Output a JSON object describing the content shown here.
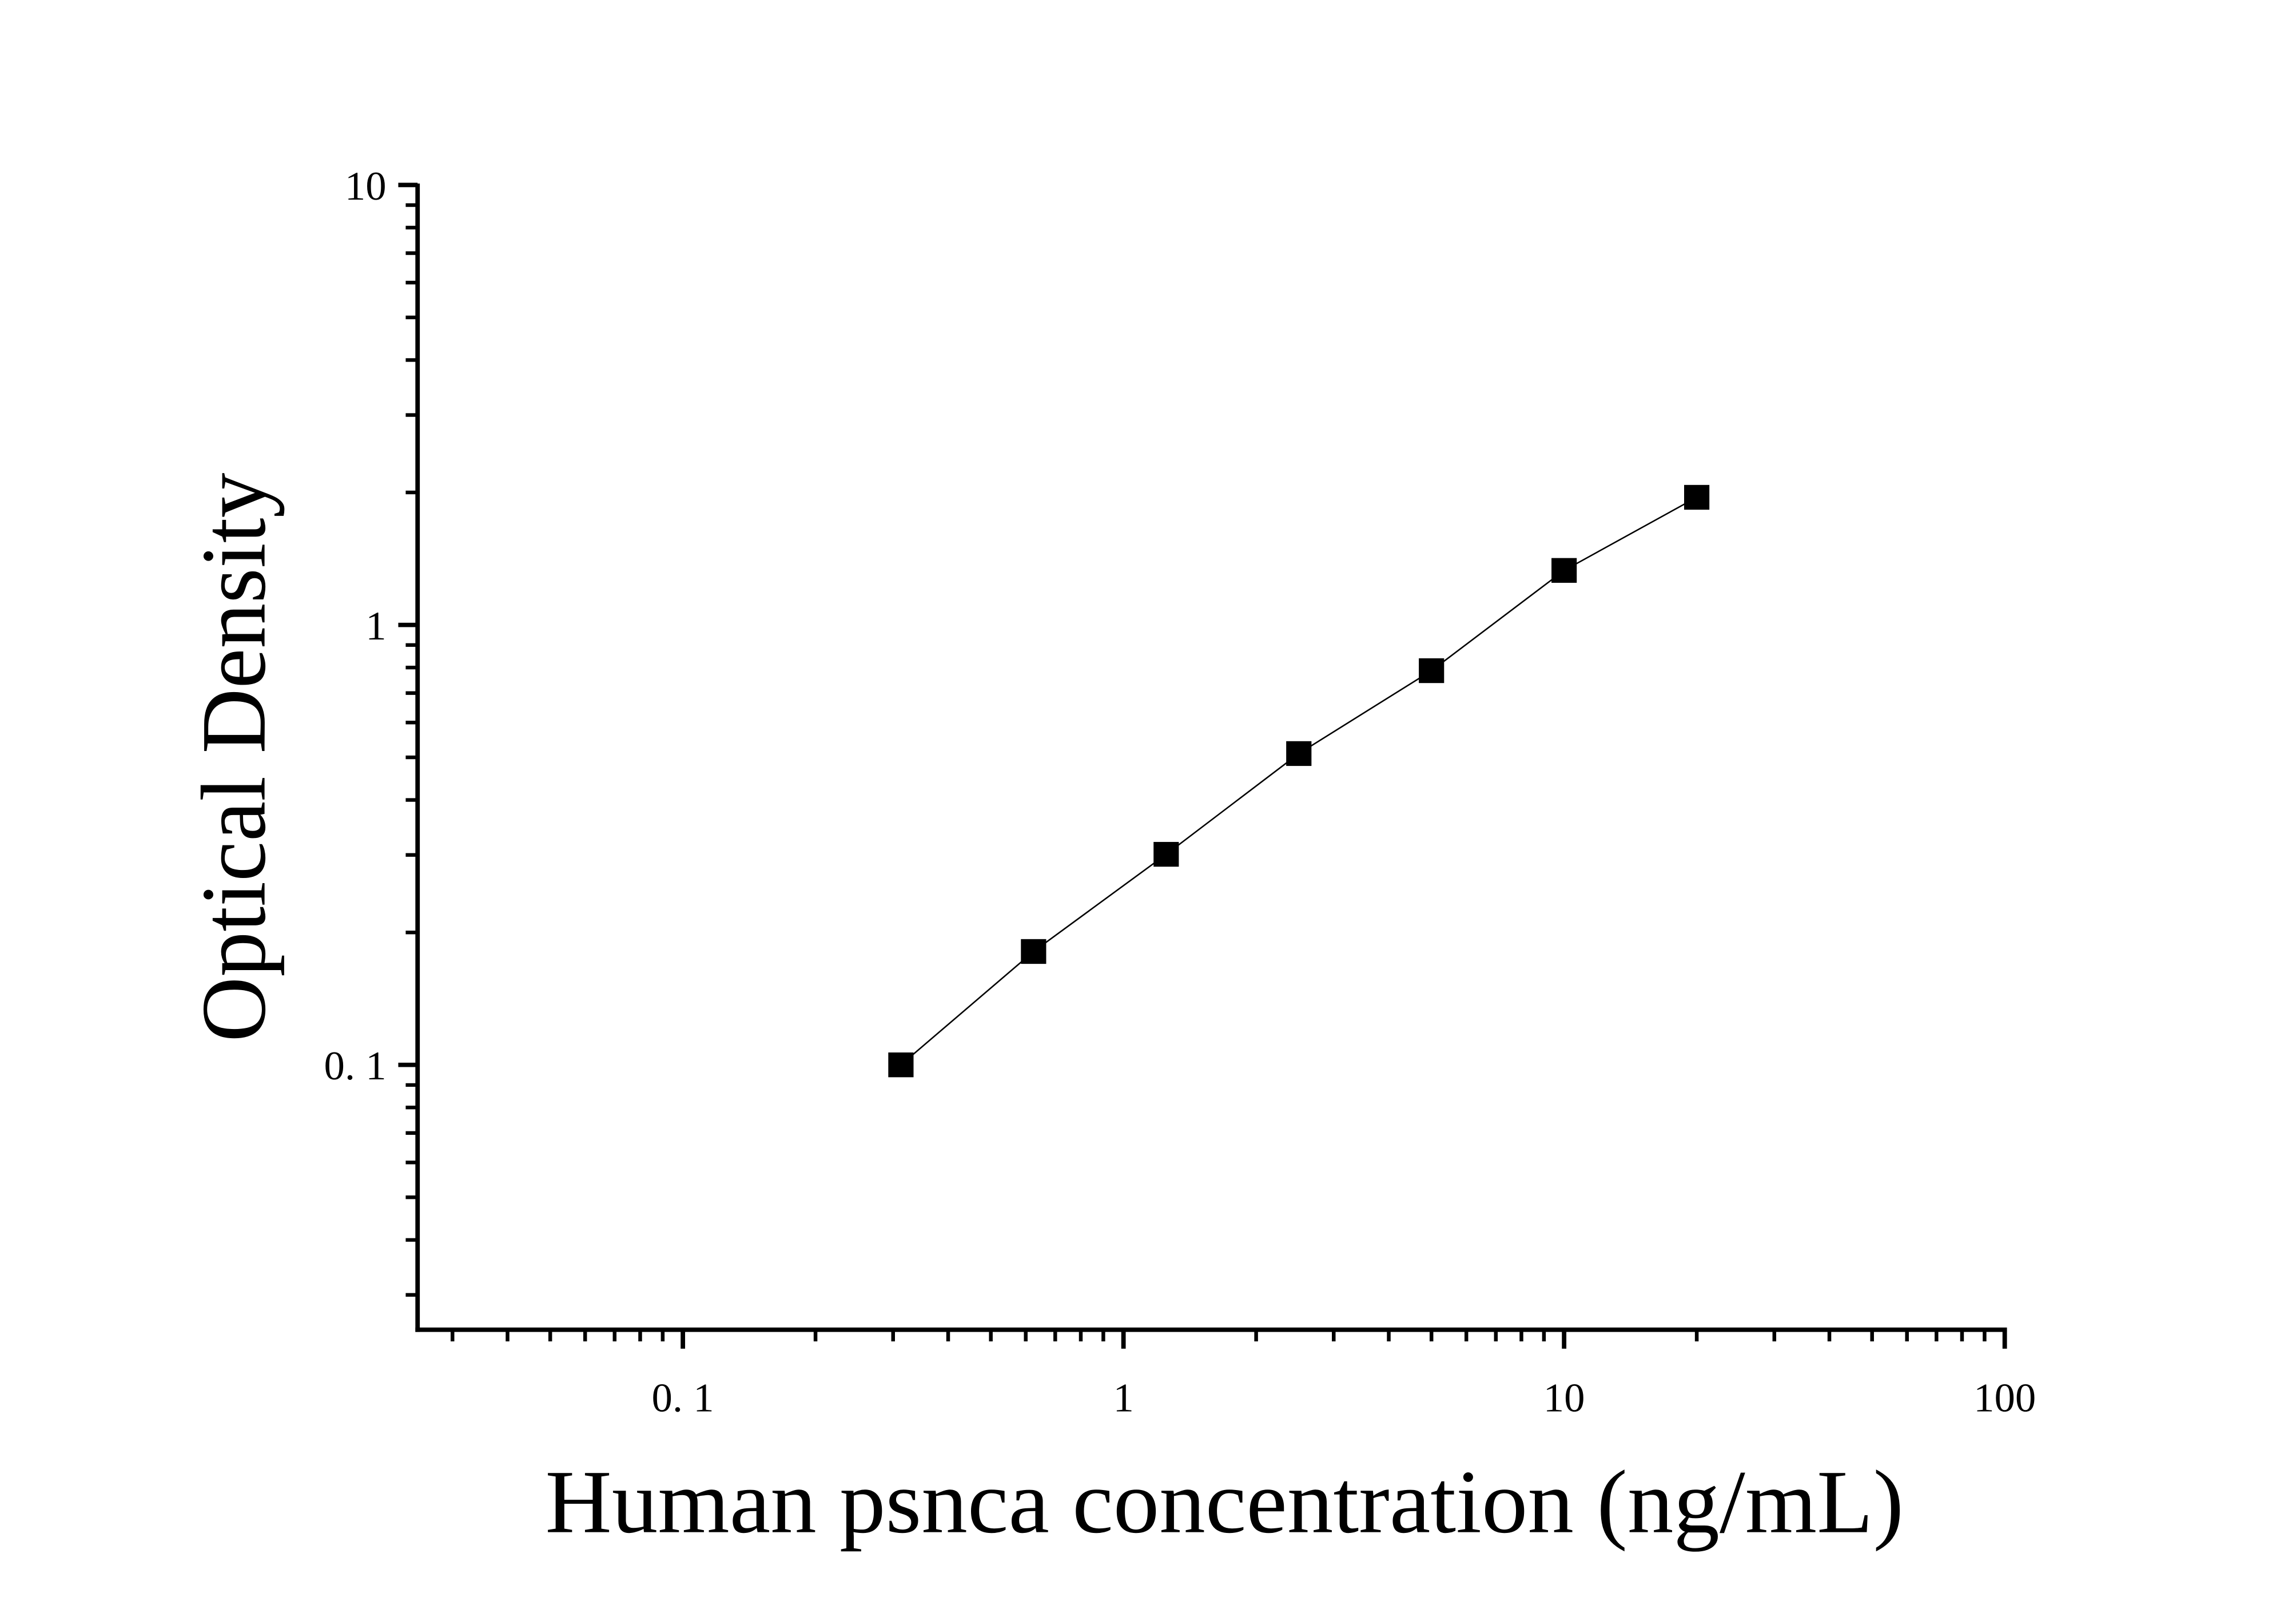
{
  "chart_data": {
    "type": "line",
    "x_label": "Human psnca concentration (ng/mL)",
    "y_label": "Optical Density",
    "x": [
      0.3125,
      0.625,
      1.25,
      2.5,
      5,
      10,
      20
    ],
    "values": [
      0.1,
      0.181,
      0.301,
      0.51,
      0.787,
      1.33,
      1.95
    ],
    "color": "#000000",
    "marker": "square",
    "xscale": "log",
    "yscale": "log",
    "xlim": [
      0.025,
      100
    ],
    "ylim": [
      0.025,
      10
    ],
    "xticks": [
      {
        "value": 0.1,
        "label": "0. 1"
      },
      1,
      10,
      100
    ],
    "yticks": [
      {
        "value": 0.1,
        "label": "0. 1"
      },
      1,
      10
    ],
    "xminorticks": [
      0.03,
      0.04,
      0.05,
      0.06,
      0.07,
      0.08,
      0.09,
      0.2,
      0.3,
      0.4,
      0.5,
      0.6,
      0.7,
      0.8,
      0.9,
      2,
      3,
      4,
      5,
      6,
      7,
      8,
      9,
      20,
      30,
      40,
      50,
      60,
      70,
      80,
      90
    ],
    "yminorticks": [
      0.03,
      0.04,
      0.05,
      0.06,
      0.07,
      0.08,
      0.09,
      0.2,
      0.3,
      0.4,
      0.5,
      0.6,
      0.7,
      0.8,
      0.9,
      2,
      3,
      4,
      5,
      6,
      7,
      8,
      9
    ],
    "grid": false
  }
}
